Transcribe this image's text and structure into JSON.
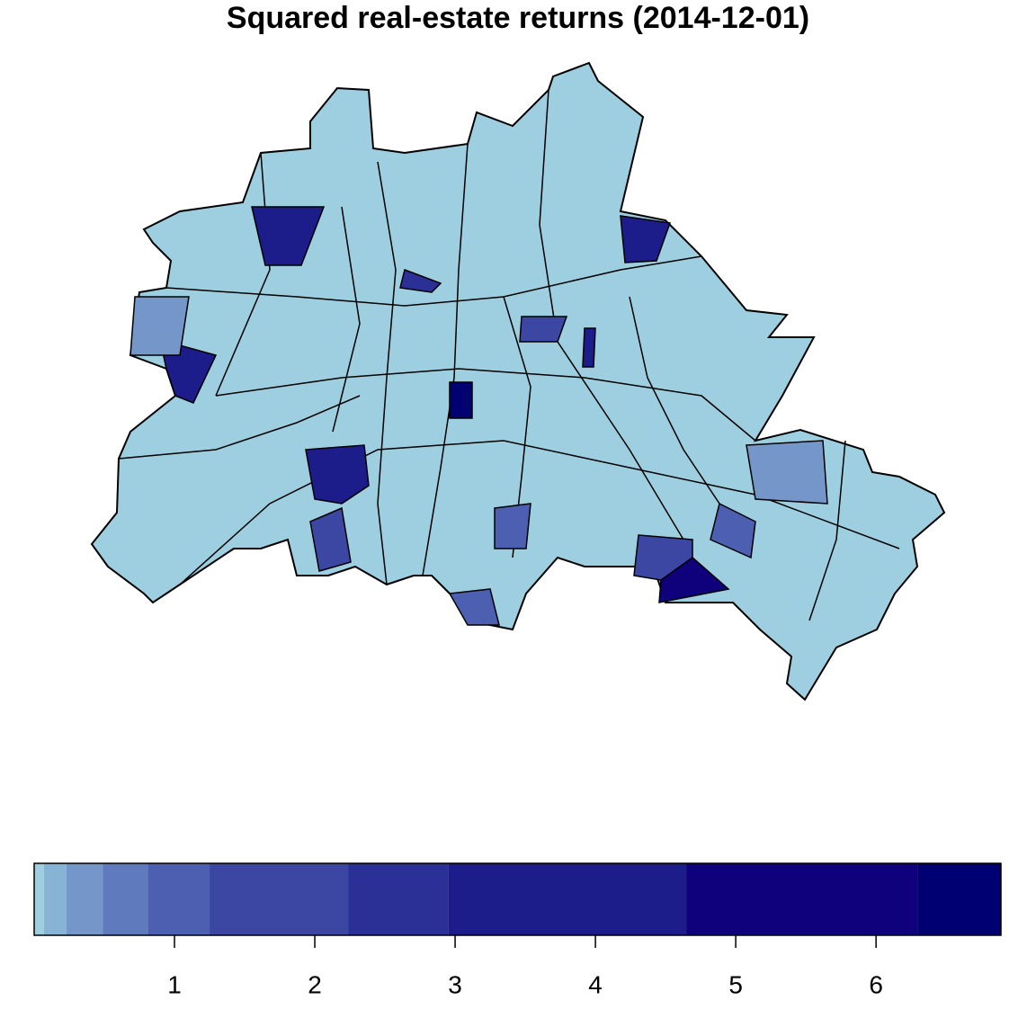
{
  "chart_data": {
    "type": "choropleth",
    "title": "Squared real-estate returns (2014-12-01)",
    "breaks": [
      0,
      0.07,
      0.23,
      0.49,
      0.81,
      1.25,
      2.24,
      2.95,
      4.65,
      6.3,
      6.89
    ],
    "colors": [
      "#9ecfe0",
      "#87b3d4",
      "#7496c8",
      "#5f7bbd",
      "#4d5fb0",
      "#3c47a3",
      "#2b3096",
      "#1c1c8a",
      "#0f007c",
      "#000073"
    ],
    "xlim": [
      0,
      6.89
    ],
    "xticks": [
      1,
      2,
      3,
      4,
      5,
      6
    ],
    "region_values": [
      3.5,
      3.5,
      6.5,
      3.5,
      5.5,
      3.5,
      2.5,
      2.0,
      3.0,
      1.8,
      1.5,
      1.2,
      1.2,
      0.4,
      0.9,
      0.3
    ]
  }
}
